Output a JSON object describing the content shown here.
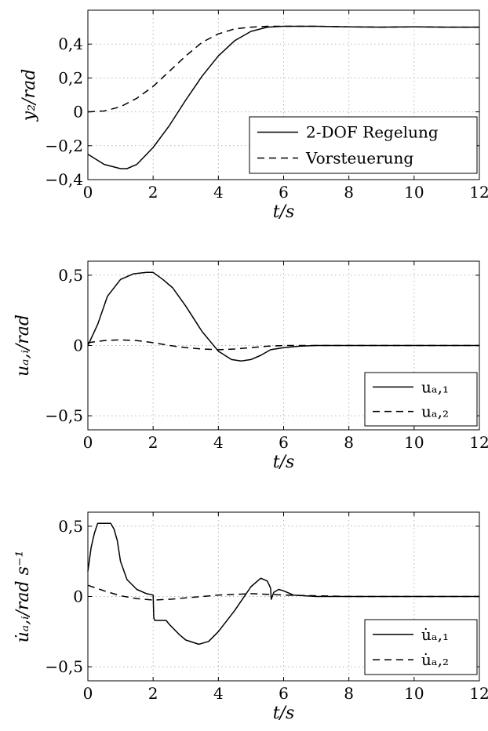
{
  "chart_data": [
    {
      "type": "line",
      "xlabel": "t/s",
      "ylabel": "y₂/rad",
      "xlim": [
        0,
        12
      ],
      "ylim": [
        -0.4,
        0.6
      ],
      "xticks": [
        0,
        2,
        4,
        6,
        8,
        10,
        12
      ],
      "xtick_labels": [
        "0",
        "2",
        "4",
        "6",
        "8",
        "10",
        "12"
      ],
      "yticks": [
        -0.4,
        -0.2,
        0,
        0.2,
        0.4
      ],
      "ytick_labels": [
        "−0,4",
        "−0,2",
        "0",
        "0,2",
        "0,4"
      ],
      "grid": true,
      "legend_position": "bottom-right",
      "series": [
        {
          "name": "2-DOF Regelung",
          "style": "solid",
          "x": [
            0,
            0.5,
            1.0,
            1.2,
            1.5,
            2.0,
            2.5,
            3.0,
            3.5,
            4.0,
            4.5,
            5.0,
            5.5,
            6.0,
            7.0,
            8.0,
            9.0,
            10.0,
            11.0,
            12.0
          ],
          "y": [
            -0.25,
            -0.31,
            -0.335,
            -0.335,
            -0.31,
            -0.21,
            -0.08,
            0.07,
            0.21,
            0.33,
            0.42,
            0.475,
            0.5,
            0.505,
            0.505,
            0.502,
            0.5,
            0.502,
            0.5,
            0.5
          ]
        },
        {
          "name": "Vorsteuerung",
          "style": "dashed",
          "x": [
            0,
            0.5,
            1.0,
            1.5,
            2.0,
            2.5,
            3.0,
            3.5,
            4.0,
            4.5,
            5.0,
            5.5,
            6.0,
            7.0,
            8.0,
            9.0,
            10.0,
            11.0,
            12.0
          ],
          "y": [
            0,
            0.005,
            0.03,
            0.08,
            0.15,
            0.24,
            0.33,
            0.41,
            0.46,
            0.49,
            0.5,
            0.505,
            0.505,
            0.505,
            0.502,
            0.5,
            0.502,
            0.5,
            0.5
          ]
        }
      ]
    },
    {
      "type": "line",
      "xlabel": "t/s",
      "ylabel": "uₐ,ᵢ/rad",
      "xlim": [
        0,
        12
      ],
      "ylim": [
        -0.6,
        0.6
      ],
      "xticks": [
        0,
        2,
        4,
        6,
        8,
        10,
        12
      ],
      "xtick_labels": [
        "0",
        "2",
        "4",
        "6",
        "8",
        "10",
        "12"
      ],
      "yticks": [
        -0.5,
        0,
        0.5
      ],
      "ytick_labels": [
        "−0,5",
        "0",
        "0,5"
      ],
      "grid": true,
      "legend_position": "bottom-right",
      "series": [
        {
          "name": "uₐ,₁",
          "style": "solid",
          "x": [
            0,
            0.3,
            0.6,
            1.0,
            1.4,
            1.8,
            2.0,
            2.3,
            2.6,
            3.0,
            3.5,
            4.0,
            4.4,
            4.7,
            5.0,
            5.3,
            5.6,
            6.0,
            6.5,
            7.0,
            8.0,
            12.0
          ],
          "y": [
            0,
            0.15,
            0.35,
            0.47,
            0.51,
            0.52,
            0.52,
            0.47,
            0.41,
            0.28,
            0.1,
            -0.04,
            -0.1,
            -0.11,
            -0.1,
            -0.07,
            -0.03,
            -0.015,
            -0.005,
            0,
            0,
            0
          ]
        },
        {
          "name": "uₐ,₂",
          "style": "dashed",
          "x": [
            0,
            0.5,
            1.0,
            1.5,
            2.0,
            2.5,
            3.0,
            3.5,
            4.0,
            4.5,
            5.0,
            5.5,
            6.0,
            7.0,
            8.0,
            12.0
          ],
          "y": [
            0.02,
            0.035,
            0.04,
            0.035,
            0.02,
            0,
            -0.015,
            -0.025,
            -0.03,
            -0.025,
            -0.015,
            -0.005,
            0,
            0,
            0,
            0
          ]
        }
      ]
    },
    {
      "type": "line",
      "xlabel": "t/s",
      "ylabel": "u̇ₐ,ᵢ/rad s⁻¹",
      "xlim": [
        0,
        12
      ],
      "ylim": [
        -0.6,
        0.6
      ],
      "xticks": [
        0,
        2,
        4,
        6,
        8,
        10,
        12
      ],
      "xtick_labels": [
        "0",
        "2",
        "4",
        "6",
        "8",
        "10",
        "12"
      ],
      "yticks": [
        -0.5,
        0,
        0.5
      ],
      "ytick_labels": [
        "−0,5",
        "0",
        "0,5"
      ],
      "grid": true,
      "legend_position": "bottom-right",
      "series": [
        {
          "name": "u̇ₐ,₁",
          "style": "solid",
          "x": [
            0,
            0.1,
            0.2,
            0.3,
            0.7,
            0.8,
            0.9,
            1.0,
            1.2,
            1.5,
            1.8,
            2.0,
            2.02,
            2.05,
            2.4,
            2.5,
            2.8,
            3.0,
            3.4,
            3.7,
            4.0,
            4.5,
            5.0,
            5.3,
            5.5,
            5.6,
            5.62,
            5.7,
            5.85,
            6.0,
            6.3,
            7.0,
            8.0,
            12.0
          ],
          "y": [
            0.18,
            0.35,
            0.45,
            0.52,
            0.52,
            0.48,
            0.4,
            0.25,
            0.12,
            0.05,
            0.02,
            0.01,
            -0.15,
            -0.17,
            -0.17,
            -0.2,
            -0.27,
            -0.31,
            -0.34,
            -0.32,
            -0.25,
            -0.1,
            0.07,
            0.13,
            0.11,
            0.06,
            -0.02,
            0.03,
            0.05,
            0.04,
            0.01,
            0,
            0,
            0
          ]
        },
        {
          "name": "u̇ₐ,₂",
          "style": "dashed",
          "x": [
            0,
            0.5,
            1.0,
            1.5,
            2.0,
            2.5,
            3.0,
            3.5,
            4.0,
            4.5,
            5.0,
            5.5,
            6.0,
            7.0,
            8.0,
            12.0
          ],
          "y": [
            0.08,
            0.04,
            0.005,
            -0.015,
            -0.025,
            -0.02,
            -0.01,
            0,
            0.01,
            0.015,
            0.02,
            0.015,
            0.01,
            0.005,
            0,
            0
          ]
        }
      ]
    }
  ]
}
